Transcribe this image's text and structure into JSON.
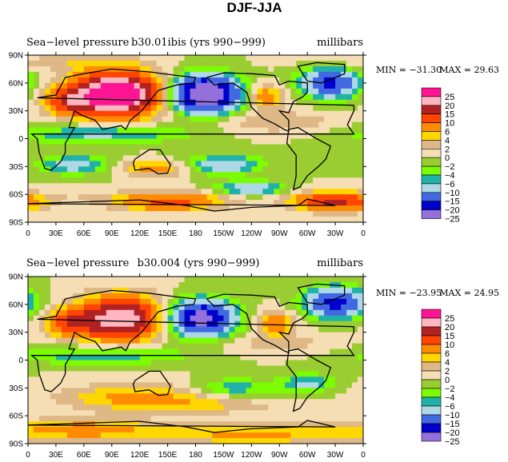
{
  "figure_title": "DJF-JJA",
  "colorbar": {
    "labels": [
      "25",
      "20",
      "15",
      "10",
      "6",
      "4",
      "2",
      "0",
      "−2",
      "−4",
      "−6",
      "−10",
      "−15",
      "−20",
      "−25"
    ],
    "colors": [
      "#ff1493",
      "#ffb6c1",
      "#b22222",
      "#ff4500",
      "#ff8c00",
      "#ffd700",
      "#deb887",
      "#f5deb3",
      "#9acd32",
      "#7cfc00",
      "#20b2aa",
      "#add8e6",
      "#4169e1",
      "#0000cd",
      "#9370db"
    ]
  },
  "chart_data": [
    {
      "type": "heatmap",
      "title_left": "Sea−level pressure",
      "title_center": "b30.01ibis (yrs 990−999)",
      "units": "millibars",
      "min_label": "MIN = −31.30",
      "max_label": "MAX =   29.63",
      "min": -31.3,
      "max": 29.63,
      "xticks": [
        "0",
        "30E",
        "60E",
        "90E",
        "120E",
        "150E",
        "180",
        "150W",
        "120W",
        "90W",
        "60W",
        "30W",
        "0"
      ],
      "yticks": [
        "90N",
        "60N",
        "30N",
        "0",
        "30S",
        "60S",
        "90S"
      ],
      "xlim": [
        0,
        360
      ],
      "ylim": [
        -90,
        90
      ],
      "contour_levels": [
        -25,
        -20,
        -15,
        -10,
        -6,
        -4,
        -2,
        0,
        2,
        4,
        6,
        10,
        15,
        20,
        25
      ]
    },
    {
      "type": "heatmap",
      "title_left": "Sea−level pressure",
      "title_center": "b30.004 (yrs 990−999)",
      "units": "millibars",
      "min_label": "MIN = −23.95",
      "max_label": "MAX =   24.95",
      "min": -23.95,
      "max": 24.95,
      "xticks": [
        "0",
        "30E",
        "60E",
        "90E",
        "120E",
        "150E",
        "180",
        "150W",
        "120W",
        "90W",
        "60W",
        "30W",
        "0"
      ],
      "yticks": [
        "90N",
        "60N",
        "30N",
        "0",
        "30S",
        "60S",
        "90S"
      ],
      "xlim": [
        0,
        360
      ],
      "ylim": [
        -90,
        90
      ],
      "contour_levels": [
        -25,
        -20,
        -15,
        -10,
        -6,
        -4,
        -2,
        0,
        2,
        4,
        6,
        10,
        15,
        20,
        25
      ]
    }
  ]
}
